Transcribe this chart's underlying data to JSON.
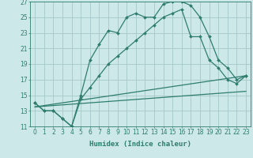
{
  "xlabel": "Humidex (Indice chaleur)",
  "bg_color": "#cce8e8",
  "grid_color": "#aacccc",
  "line_color": "#2e7d6e",
  "xlim": [
    -0.5,
    23.5
  ],
  "ylim": [
    11,
    27
  ],
  "xticks": [
    0,
    1,
    2,
    3,
    4,
    5,
    6,
    7,
    8,
    9,
    10,
    11,
    12,
    13,
    14,
    15,
    16,
    17,
    18,
    19,
    20,
    21,
    22,
    23
  ],
  "yticks": [
    11,
    13,
    15,
    17,
    19,
    21,
    23,
    25,
    27
  ],
  "curve1_x": [
    0,
    1,
    2,
    3,
    4,
    5,
    6,
    7,
    8,
    9,
    10,
    11,
    12,
    13,
    14,
    15,
    16,
    17,
    18,
    19,
    20,
    21,
    22,
    23
  ],
  "curve1_y": [
    14.0,
    13.0,
    13.0,
    12.0,
    11.0,
    15.0,
    19.5,
    21.5,
    23.3,
    23.0,
    25.0,
    25.5,
    25.0,
    25.0,
    26.7,
    27.0,
    27.0,
    26.5,
    25.0,
    22.5,
    19.5,
    18.5,
    17.0,
    17.5
  ],
  "curve2_x": [
    0,
    1,
    2,
    3,
    4,
    5,
    6,
    7,
    8,
    9,
    10,
    11,
    12,
    13,
    14,
    15,
    16,
    17,
    18,
    19,
    20,
    21,
    22,
    23
  ],
  "curve2_y": [
    14.0,
    13.0,
    13.0,
    12.0,
    11.0,
    14.5,
    16.0,
    17.5,
    19.0,
    20.0,
    21.0,
    22.0,
    23.0,
    24.0,
    25.0,
    25.5,
    26.0,
    22.5,
    22.5,
    19.5,
    18.5,
    17.0,
    16.5,
    17.5
  ],
  "curve3_x": [
    0,
    23
  ],
  "curve3_y": [
    13.5,
    17.5
  ],
  "curve4_x": [
    0,
    23
  ],
  "curve4_y": [
    13.5,
    15.5
  ],
  "xlabel_fontsize": 6.5,
  "tick_fontsize": 5.5
}
